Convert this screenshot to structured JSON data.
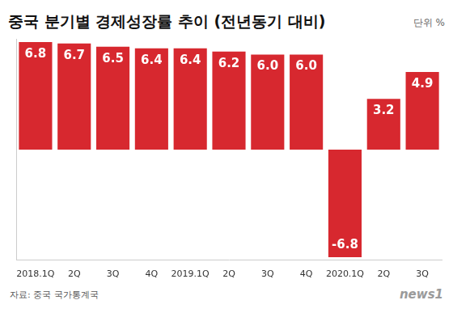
{
  "chart_data": {
    "type": "bar",
    "title": "중국 분기별 경제성장률 추이 (전년동기 대비)",
    "unit": "단위 %",
    "source": "자료: 중국 국가통계국",
    "credit": "news1",
    "categories": [
      "2018.1Q",
      "2Q",
      "3Q",
      "4Q",
      "2019.1Q",
      "2Q",
      "3Q",
      "4Q",
      "2020.1Q",
      "2Q",
      "3Q"
    ],
    "values": [
      6.8,
      6.7,
      6.5,
      6.4,
      6.4,
      6.2,
      6.0,
      6.0,
      -6.8,
      3.2,
      4.9
    ],
    "value_labels": [
      "6.8",
      "6.7",
      "6.5",
      "6.4",
      "6.4",
      "6.2",
      "6.0",
      "6.0",
      "-6.8",
      "3.2",
      "4.9"
    ],
    "color": "#d7282f",
    "ylim": [
      -7,
      7
    ],
    "grid": false,
    "data_labels": true,
    "tick_labels": "x"
  }
}
